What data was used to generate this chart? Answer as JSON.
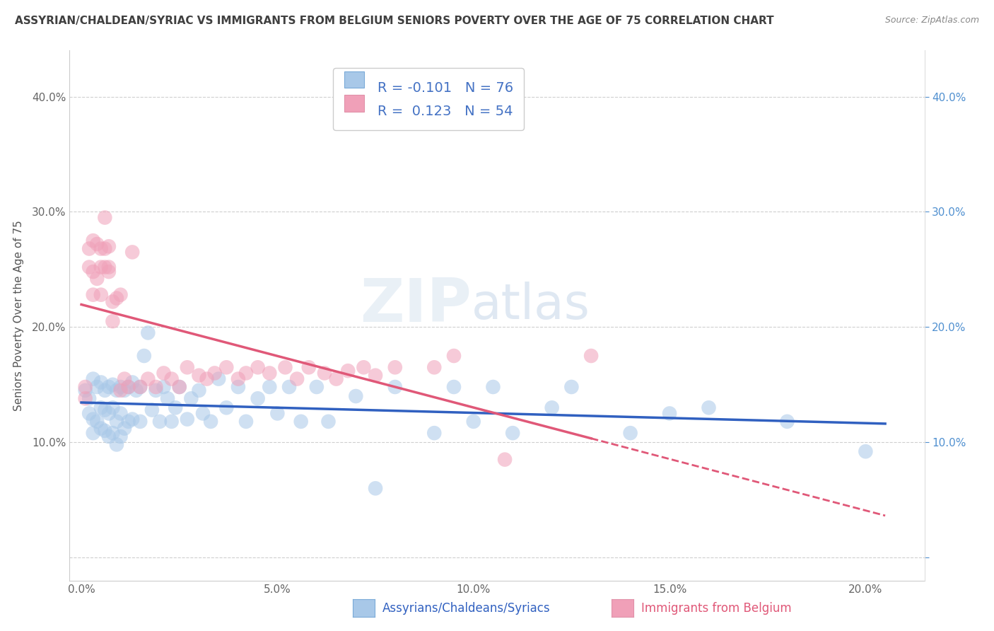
{
  "title": "ASSYRIAN/CHALDEAN/SYRIAC VS IMMIGRANTS FROM BELGIUM SENIORS POVERTY OVER THE AGE OF 75 CORRELATION CHART",
  "source_text": "Source: ZipAtlas.com",
  "ylabel": "Seniors Poverty Over the Age of 75",
  "xlabel_ticks": [
    "0.0%",
    "5.0%",
    "10.0%",
    "15.0%",
    "20.0%"
  ],
  "xlabel_vals": [
    0.0,
    0.05,
    0.1,
    0.15,
    0.2
  ],
  "ylabel_ticks_left": [
    "",
    "10.0%",
    "20.0%",
    "30.0%",
    "40.0%"
  ],
  "ylabel_ticks_right": [
    "",
    "10.0%",
    "20.0%",
    "30.0%",
    "40.0%"
  ],
  "ylabel_vals": [
    0.0,
    0.1,
    0.2,
    0.3,
    0.4
  ],
  "xlim": [
    -0.003,
    0.215
  ],
  "ylim": [
    -0.02,
    0.44
  ],
  "legend_label1": "R = -0.101   N = 76",
  "legend_label2": "R =  0.123   N = 54",
  "bottom_label1": "Assyrians/Chaldeans/Syriacs",
  "bottom_label2": "Immigrants from Belgium",
  "watermark_zip": "ZIP",
  "watermark_atlas": "atlas",
  "color_blue": "#A8C8E8",
  "color_pink": "#F0A0B8",
  "color_blue_line": "#3060C0",
  "color_pink_line": "#E05878",
  "legend_text_color": "#4472C4",
  "right_axis_color": "#5090D0",
  "R1": -0.101,
  "N1": 76,
  "R2": 0.123,
  "N2": 54,
  "blue_x": [
    0.001,
    0.002,
    0.002,
    0.003,
    0.003,
    0.003,
    0.004,
    0.004,
    0.005,
    0.005,
    0.005,
    0.006,
    0.006,
    0.006,
    0.007,
    0.007,
    0.007,
    0.008,
    0.008,
    0.008,
    0.009,
    0.009,
    0.009,
    0.01,
    0.01,
    0.01,
    0.011,
    0.011,
    0.012,
    0.012,
    0.013,
    0.013,
    0.014,
    0.015,
    0.015,
    0.016,
    0.017,
    0.018,
    0.019,
    0.02,
    0.021,
    0.022,
    0.023,
    0.024,
    0.025,
    0.027,
    0.028,
    0.03,
    0.031,
    0.033,
    0.035,
    0.037,
    0.04,
    0.042,
    0.045,
    0.048,
    0.05,
    0.053,
    0.056,
    0.06,
    0.063,
    0.07,
    0.075,
    0.08,
    0.09,
    0.095,
    0.1,
    0.105,
    0.11,
    0.12,
    0.125,
    0.14,
    0.15,
    0.16,
    0.18,
    0.2
  ],
  "blue_y": [
    0.145,
    0.138,
    0.125,
    0.155,
    0.12,
    0.108,
    0.148,
    0.118,
    0.152,
    0.13,
    0.112,
    0.145,
    0.128,
    0.11,
    0.148,
    0.125,
    0.105,
    0.15,
    0.13,
    0.108,
    0.145,
    0.118,
    0.098,
    0.148,
    0.125,
    0.105,
    0.145,
    0.112,
    0.148,
    0.118,
    0.152,
    0.12,
    0.145,
    0.148,
    0.118,
    0.175,
    0.195,
    0.128,
    0.145,
    0.118,
    0.148,
    0.138,
    0.118,
    0.13,
    0.148,
    0.12,
    0.138,
    0.145,
    0.125,
    0.118,
    0.155,
    0.13,
    0.148,
    0.118,
    0.138,
    0.148,
    0.125,
    0.148,
    0.118,
    0.148,
    0.118,
    0.14,
    0.06,
    0.148,
    0.108,
    0.148,
    0.118,
    0.148,
    0.108,
    0.13,
    0.148,
    0.108,
    0.125,
    0.13,
    0.118,
    0.092
  ],
  "pink_x": [
    0.001,
    0.001,
    0.002,
    0.002,
    0.003,
    0.003,
    0.003,
    0.004,
    0.004,
    0.005,
    0.005,
    0.005,
    0.006,
    0.006,
    0.006,
    0.007,
    0.007,
    0.007,
    0.008,
    0.008,
    0.009,
    0.01,
    0.01,
    0.011,
    0.012,
    0.013,
    0.015,
    0.017,
    0.019,
    0.021,
    0.023,
    0.025,
    0.027,
    0.03,
    0.032,
    0.034,
    0.037,
    0.04,
    0.042,
    0.045,
    0.048,
    0.052,
    0.055,
    0.058,
    0.062,
    0.065,
    0.068,
    0.072,
    0.075,
    0.08,
    0.09,
    0.095,
    0.108,
    0.13
  ],
  "pink_y": [
    0.148,
    0.138,
    0.268,
    0.252,
    0.275,
    0.248,
    0.228,
    0.272,
    0.242,
    0.268,
    0.252,
    0.228,
    0.268,
    0.252,
    0.295,
    0.248,
    0.27,
    0.252,
    0.222,
    0.205,
    0.225,
    0.145,
    0.228,
    0.155,
    0.148,
    0.265,
    0.148,
    0.155,
    0.148,
    0.16,
    0.155,
    0.148,
    0.165,
    0.158,
    0.155,
    0.16,
    0.165,
    0.155,
    0.16,
    0.165,
    0.16,
    0.165,
    0.155,
    0.165,
    0.16,
    0.155,
    0.162,
    0.165,
    0.158,
    0.165,
    0.165,
    0.175,
    0.085,
    0.175
  ]
}
